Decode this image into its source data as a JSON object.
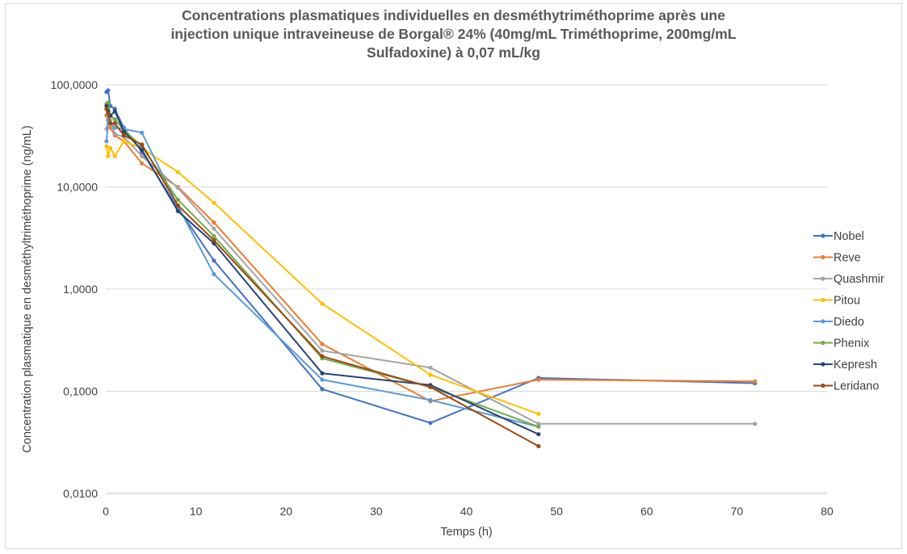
{
  "chart_data": {
    "type": "line",
    "title_lines": [
      "Concentrations plasmatiques individuelles en desméthytriméthoprime après une",
      "injection unique intraveineuse de Borgal® 24% (40mg/mL Triméthoprime, 200mg/mL",
      "Sulfadoxine) à 0,07 mL/kg"
    ],
    "xlabel": "Temps (h)",
    "ylabel": "Concentration plasmatique en desméthyltriméthoprime (ng/mL)",
    "xlim": [
      0,
      80
    ],
    "xticks": [
      0,
      10,
      20,
      30,
      40,
      50,
      60,
      70,
      80
    ],
    "x_tick_labels": [
      "0",
      "10",
      "20",
      "30",
      "40",
      "50",
      "60",
      "70",
      "80"
    ],
    "ylim": [
      0.01,
      100
    ],
    "y_scale": "log",
    "yticks": [
      0.01,
      0.1,
      1,
      10,
      100
    ],
    "y_tick_labels": [
      "0,0100",
      "0,1000",
      "1,0000",
      "10,0000",
      "100,0000"
    ],
    "grid": "horizontal",
    "legend_position": "right",
    "series": [
      {
        "name": "Nobel",
        "color": "#4472c4",
        "x": [
          0.083,
          0.25,
          0.5,
          1,
          2,
          4,
          8,
          12,
          24,
          36,
          48,
          72
        ],
        "y": [
          85,
          88,
          62,
          58,
          38,
          22,
          6.2,
          1.9,
          0.105,
          0.049,
          0.135,
          0.12
        ]
      },
      {
        "name": "Reve",
        "color": "#ed7d31",
        "x": [
          0.083,
          0.25,
          0.5,
          1,
          2,
          4,
          8,
          12,
          24,
          36,
          48,
          72
        ],
        "y": [
          50,
          48,
          38,
          32,
          28,
          17,
          10,
          4.5,
          0.29,
          0.08,
          0.13,
          0.125
        ]
      },
      {
        "name": "Quashmir",
        "color": "#a5a5a5",
        "x": [
          0.083,
          0.25,
          0.5,
          1,
          2,
          4,
          8,
          12,
          24,
          36,
          48,
          72
        ],
        "y": [
          37,
          48,
          45,
          33,
          31,
          20,
          9.8,
          3.9,
          0.25,
          0.17,
          0.048,
          0.048
        ]
      },
      {
        "name": "Pitou",
        "color": "#ffc000",
        "x": [
          0.083,
          0.25,
          0.5,
          1,
          2,
          4,
          8,
          12,
          24,
          36,
          48
        ],
        "y": [
          25,
          20,
          24,
          20,
          28,
          24,
          14,
          7,
          0.72,
          0.145,
          0.06
        ]
      },
      {
        "name": "Diedo",
        "color": "#5b9bd5",
        "x": [
          0.083,
          0.25,
          0.5,
          1,
          2,
          4,
          8,
          12,
          24,
          36,
          48
        ],
        "y": [
          28,
          45,
          42,
          38,
          37,
          34,
          6.5,
          1.4,
          0.13,
          0.082,
          0.045
        ]
      },
      {
        "name": "Phenix",
        "color": "#70ad47",
        "x": [
          0.083,
          0.25,
          0.5,
          1,
          2,
          4,
          8,
          12,
          24,
          36,
          48
        ],
        "y": [
          65,
          67,
          50,
          46,
          36,
          25,
          7.5,
          3.3,
          0.21,
          0.11,
          0.045
        ]
      },
      {
        "name": "Kepresh",
        "color": "#264478",
        "x": [
          0.083,
          0.25,
          0.5,
          1,
          2,
          4,
          8,
          12,
          24,
          36,
          48
        ],
        "y": [
          62,
          55,
          50,
          55,
          35,
          23,
          5.8,
          2.8,
          0.15,
          0.115,
          0.038
        ]
      },
      {
        "name": "Leridano",
        "color": "#9e480e",
        "x": [
          0.083,
          0.25,
          0.5,
          1,
          2,
          4,
          8,
          12,
          24,
          36,
          48
        ],
        "y": [
          58,
          52,
          42,
          42,
          32,
          26,
          6.6,
          3.0,
          0.22,
          0.11,
          0.029
        ]
      }
    ]
  }
}
